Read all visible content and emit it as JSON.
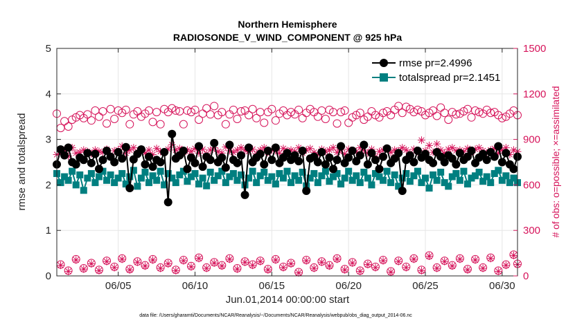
{
  "chart_data": {
    "type": "line",
    "title": "Northern Hemisphere",
    "subtitle": "RADIOSONDE_V_WIND_COMPONENT @ 925 hPa",
    "xlabel": "Jun.01,2014 00:00:00 start",
    "ylabel": "rmse and totalspread",
    "ylabel_right": "# of obs: o=possible; ×=assimilated",
    "footnote": "data file: /Users/gharamti/Documents/NCAR/Reanalysis/~/Documents/NCAR/Reanalysis/webpub/obs_diag_output_2014-06.nc",
    "xlim": [
      1,
      31
    ],
    "ylim": [
      0,
      5
    ],
    "ylim_right": [
      0,
      1500
    ],
    "x_ticks": [
      5,
      10,
      15,
      20,
      25,
      30
    ],
    "x_tick_labels": [
      "06/05",
      "06/10",
      "06/15",
      "06/20",
      "06/25",
      "06/30"
    ],
    "y_ticks": [
      0,
      1,
      2,
      3,
      4,
      5
    ],
    "y_tick_labels": [
      "0",
      "1",
      "2",
      "3",
      "4",
      "5"
    ],
    "y_ticks_right": [
      0,
      300,
      600,
      900,
      1200,
      1500
    ],
    "y_tick_labels_right": [
      "0",
      "300",
      "600",
      "900",
      "1200",
      "1500"
    ],
    "grid": true,
    "legend": "top-right",
    "colors": {
      "rmse": "#000000",
      "spread": "#007f80",
      "obs": "#d6135a",
      "grid": "#e6e6e6",
      "axis": "#262626"
    },
    "x": [
      1.0,
      1.25,
      1.5,
      1.75,
      2.0,
      2.25,
      2.5,
      2.75,
      3.0,
      3.25,
      3.5,
      3.75,
      4.0,
      4.25,
      4.5,
      4.75,
      5.0,
      5.25,
      5.5,
      5.75,
      6.0,
      6.25,
      6.5,
      6.75,
      7.0,
      7.25,
      7.5,
      7.75,
      8.0,
      8.25,
      8.5,
      8.75,
      9.0,
      9.25,
      9.5,
      9.75,
      10.0,
      10.25,
      10.5,
      10.75,
      11.0,
      11.25,
      11.5,
      11.75,
      12.0,
      12.25,
      12.5,
      12.75,
      13.0,
      13.25,
      13.5,
      13.75,
      14.0,
      14.25,
      14.5,
      14.75,
      15.0,
      15.25,
      15.5,
      15.75,
      16.0,
      16.25,
      16.5,
      16.75,
      17.0,
      17.25,
      17.5,
      17.75,
      18.0,
      18.25,
      18.5,
      18.75,
      19.0,
      19.25,
      19.5,
      19.75,
      20.0,
      20.25,
      20.5,
      20.75,
      21.0,
      21.25,
      21.5,
      21.75,
      22.0,
      22.25,
      22.5,
      22.75,
      23.0,
      23.25,
      23.5,
      23.75,
      24.0,
      24.25,
      24.5,
      24.75,
      25.0,
      25.25,
      25.5,
      25.75,
      26.0,
      26.25,
      26.5,
      26.75,
      27.0,
      27.25,
      27.5,
      27.75,
      28.0,
      28.25,
      28.5,
      28.75,
      29.0,
      29.25,
      29.5,
      29.75,
      30.0,
      30.25,
      30.5,
      30.75,
      31.0
    ],
    "series": [
      {
        "name": "rmse pr=2.4996",
        "marker": "filled-circle",
        "axis": "left",
        "values": [
          2.45,
          2.78,
          2.65,
          2.82,
          2.5,
          2.45,
          2.6,
          2.55,
          2.7,
          2.48,
          2.68,
          2.35,
          2.55,
          2.75,
          2.62,
          2.5,
          2.72,
          2.58,
          2.83,
          1.93,
          2.56,
          2.68,
          2.78,
          2.45,
          2.62,
          2.4,
          2.55,
          2.5,
          2.72,
          1.62,
          3.12,
          2.58,
          2.65,
          2.75,
          2.35,
          2.6,
          2.48,
          2.85,
          2.4,
          2.62,
          2.55,
          2.92,
          2.5,
          2.6,
          2.38,
          2.88,
          2.55,
          2.48,
          2.65,
          1.78,
          2.82,
          2.5,
          2.6,
          2.68,
          2.45,
          2.75,
          2.55,
          2.82,
          2.48,
          2.6,
          2.7,
          2.55,
          2.65,
          2.52,
          2.75,
          1.87,
          2.58,
          2.62,
          2.5,
          2.72,
          2.45,
          2.6,
          2.35,
          2.55,
          2.85,
          2.48,
          2.6,
          2.75,
          2.52,
          2.65,
          2.88,
          2.45,
          2.7,
          2.55,
          2.35,
          2.62,
          2.8,
          2.48,
          2.58,
          2.7,
          1.87,
          2.55,
          2.65,
          2.5,
          2.75,
          2.6,
          2.68,
          2.55,
          2.48,
          2.72,
          2.62,
          2.5,
          2.65,
          2.58,
          2.45,
          2.7,
          2.55,
          2.62,
          2.75,
          2.48,
          2.6,
          2.68,
          2.55,
          2.72,
          2.62,
          2.85,
          2.5,
          2.7,
          2.45,
          2.35,
          2.62
        ]
      },
      {
        "name": "totalspread pr=2.1451",
        "marker": "filled-square",
        "axis": "left",
        "values": [
          2.25,
          2.05,
          2.18,
          2.1,
          2.3,
          2.0,
          2.22,
          1.88,
          2.15,
          2.25,
          2.05,
          2.18,
          2.3,
          2.1,
          2.22,
          2.05,
          2.15,
          2.25,
          2.02,
          2.18,
          2.32,
          1.97,
          2.15,
          2.28,
          2.05,
          2.2,
          2.1,
          2.3,
          2.0,
          2.25,
          2.15,
          2.05,
          2.22,
          2.3,
          2.08,
          2.18,
          2.25,
          2.02,
          2.15,
          1.98,
          2.28,
          2.1,
          2.2,
          2.3,
          2.05,
          2.18,
          2.25,
          2.1,
          2.22,
          2.0,
          2.15,
          2.3,
          2.05,
          2.2,
          2.28,
          2.1,
          2.18,
          2.02,
          2.25,
          2.15,
          2.3,
          2.05,
          2.2,
          2.1,
          2.28,
          1.98,
          2.15,
          2.25,
          2.05,
          2.2,
          2.3,
          2.08,
          2.18,
          2.25,
          2.02,
          2.15,
          2.3,
          2.1,
          2.2,
          2.05,
          2.28,
          2.15,
          2.0,
          2.25,
          2.18,
          2.1,
          2.3,
          2.05,
          2.22,
          1.97,
          2.15,
          2.25,
          2.08,
          2.2,
          2.3,
          2.05,
          2.15,
          1.93,
          2.22,
          2.1,
          2.28,
          2.05,
          1.97,
          2.18,
          2.25,
          2.1,
          2.3,
          2.02,
          2.15,
          2.2,
          2.28,
          2.08,
          2.18,
          2.05,
          2.25,
          2.32,
          2.1,
          2.2,
          2.05,
          2.15,
          2.05
        ]
      },
      {
        "name": "possible",
        "marker": "open-circle",
        "axis": "right",
        "values": [
          1070,
          975,
          1020,
          985,
          1030,
          1045,
          1060,
          1040,
          1065,
          1025,
          1090,
          1050,
          1085,
          1005,
          1100,
          1035,
          1090,
          1075,
          1095,
          1000,
          1065,
          1085,
          1050,
          1070,
          1090,
          1015,
          1080,
          1000,
          1100,
          1080,
          1105,
          1090,
          1085,
          1000,
          1090,
          1080,
          1095,
          1030,
          1070,
          1105,
          1065,
          1120,
          1060,
          1080,
          1000,
          1065,
          1095,
          1035,
          1085,
          1090,
          1060,
          1100,
          1040,
          1080,
          1010,
          1080,
          1100,
          1025,
          1070,
          1090,
          1060,
          1080,
          1065,
          1095,
          1040,
          1075,
          1100,
          1080,
          1050,
          1090,
          1035,
          1095,
          1080,
          1005,
          1080,
          1090,
          1010,
          1045,
          1060,
          1075,
          1030,
          1050,
          1085,
          1060,
          1045,
          1075,
          1085,
          1060,
          1095,
          1120,
          1075,
          1115,
          1100,
          1080,
          1095,
          1085,
          1060,
          1075,
          1090,
          1055,
          1110,
          1075,
          1030,
          1080,
          1065,
          1070,
          1085,
          1100,
          1045,
          1090,
          1080,
          1070,
          1095,
          1075,
          1080,
          1060,
          1040,
          1050,
          1070,
          1090,
          1060
        ]
      },
      {
        "name": "assimilated",
        "marker": "asterisk",
        "axis": "right",
        "values": [
          800,
          820,
          830,
          790,
          845,
          810,
          815,
          830,
          820,
          805,
          830,
          820,
          815,
          835,
          790,
          825,
          830,
          855,
          810,
          830,
          845,
          820,
          835,
          810,
          830,
          800,
          840,
          820,
          815,
          835,
          865,
          830,
          840,
          815,
          830,
          820,
          840,
          810,
          835,
          805,
          830,
          845,
          820,
          810,
          850,
          825,
          815,
          830,
          845,
          830,
          820,
          835,
          805,
          830,
          845,
          815,
          830,
          825,
          810,
          840,
          825,
          830,
          820,
          845,
          810,
          830,
          840,
          815,
          800,
          835,
          820,
          830,
          845,
          815,
          830,
          805,
          835,
          825,
          820,
          845,
          830,
          810,
          835,
          785,
          820,
          830,
          840,
          815,
          830,
          825,
          845,
          830,
          810,
          835,
          820,
          895,
          825,
          860,
          815,
          870,
          830,
          810,
          835,
          845,
          825,
          830,
          820,
          840,
          815,
          835,
          845,
          825,
          810,
          830,
          840,
          810,
          830,
          845,
          800,
          830,
          820
        ]
      }
    ],
    "obs_bottom": {
      "x": [
        1.25,
        1.75,
        2.25,
        2.75,
        3.25,
        3.75,
        4.25,
        4.75,
        5.25,
        5.75,
        6.25,
        6.75,
        7.25,
        7.75,
        8.25,
        8.75,
        9.25,
        9.75,
        10.25,
        10.75,
        11.25,
        11.75,
        12.25,
        12.75,
        13.25,
        13.75,
        14.25,
        14.75,
        15.25,
        15.75,
        16.25,
        16.75,
        17.25,
        17.75,
        18.25,
        18.75,
        19.25,
        19.75,
        20.25,
        20.75,
        21.25,
        21.75,
        22.25,
        22.75,
        23.25,
        23.75,
        24.25,
        24.75,
        25.25,
        25.75,
        26.25,
        26.75,
        27.25,
        27.75,
        28.25,
        28.75,
        29.25,
        29.75,
        30.25,
        30.75,
        31.0
      ],
      "possible": [
        75,
        35,
        110,
        50,
        85,
        40,
        100,
        60,
        115,
        45,
        95,
        70,
        110,
        55,
        85,
        40,
        105,
        65,
        120,
        55,
        90,
        70,
        115,
        50,
        95,
        75,
        100,
        45,
        110,
        60,
        85,
        25,
        105,
        55,
        95,
        70,
        115,
        45,
        90,
        35,
        80,
        60,
        105,
        30,
        100,
        60,
        115,
        40,
        135,
        55,
        100,
        70,
        115,
        45,
        110,
        55,
        120,
        35,
        75,
        140,
        80
      ],
      "assimilated": [
        70,
        30,
        105,
        45,
        80,
        35,
        95,
        55,
        110,
        40,
        90,
        65,
        105,
        50,
        80,
        35,
        100,
        60,
        115,
        50,
        85,
        65,
        110,
        45,
        90,
        70,
        95,
        40,
        105,
        55,
        80,
        20,
        100,
        50,
        90,
        65,
        110,
        40,
        85,
        30,
        75,
        55,
        100,
        25,
        95,
        55,
        110,
        35,
        130,
        50,
        95,
        65,
        110,
        40,
        105,
        50,
        115,
        30,
        70,
        135,
        75
      ]
    }
  }
}
